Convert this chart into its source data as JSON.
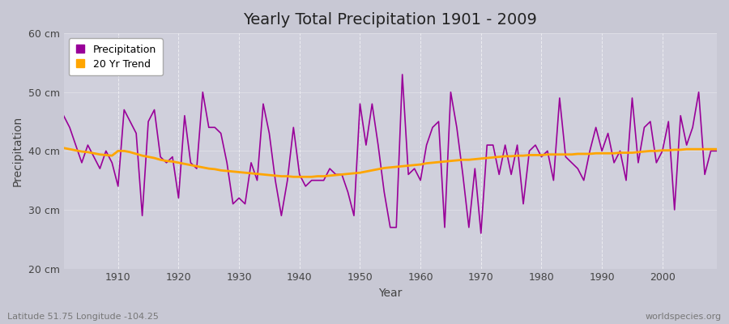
{
  "title": "Yearly Total Precipitation 1901 - 2009",
  "xlabel": "Year",
  "ylabel": "Precipitation",
  "subtitle": "Latitude 51.75 Longitude -104.25",
  "watermark": "worldspecies.org",
  "precip_color": "#990099",
  "trend_color": "#FFA500",
  "fig_bg_color": "#D8D8E0",
  "plot_bg_color": "#D0D0DC",
  "ylim": [
    20,
    60
  ],
  "xlim": [
    1901,
    2009
  ],
  "yticks": [
    20,
    30,
    40,
    50,
    60
  ],
  "ytick_labels": [
    "20 cm",
    "30 cm",
    "40 cm",
    "50 cm",
    "60 cm"
  ],
  "years": [
    1901,
    1902,
    1903,
    1904,
    1905,
    1906,
    1907,
    1908,
    1909,
    1910,
    1911,
    1912,
    1913,
    1914,
    1915,
    1916,
    1917,
    1918,
    1919,
    1920,
    1921,
    1922,
    1923,
    1924,
    1925,
    1926,
    1927,
    1928,
    1929,
    1930,
    1931,
    1932,
    1933,
    1934,
    1935,
    1936,
    1937,
    1938,
    1939,
    1940,
    1941,
    1942,
    1943,
    1944,
    1945,
    1946,
    1947,
    1948,
    1949,
    1950,
    1951,
    1952,
    1953,
    1954,
    1955,
    1956,
    1957,
    1958,
    1959,
    1960,
    1961,
    1962,
    1963,
    1964,
    1965,
    1966,
    1967,
    1968,
    1969,
    1970,
    1971,
    1972,
    1973,
    1974,
    1975,
    1976,
    1977,
    1978,
    1979,
    1980,
    1981,
    1982,
    1983,
    1984,
    1985,
    1986,
    1987,
    1988,
    1989,
    1990,
    1991,
    1992,
    1993,
    1994,
    1995,
    1996,
    1997,
    1998,
    1999,
    2000,
    2001,
    2002,
    2003,
    2004,
    2005,
    2006,
    2007,
    2008,
    2009
  ],
  "precip": [
    46,
    44,
    41,
    38,
    41,
    39,
    37,
    40,
    38,
    34,
    47,
    45,
    43,
    29,
    45,
    47,
    39,
    38,
    39,
    32,
    46,
    38,
    37,
    50,
    44,
    44,
    43,
    38,
    31,
    32,
    31,
    38,
    35,
    48,
    43,
    35,
    29,
    35,
    44,
    36,
    34,
    35,
    35,
    35,
    37,
    36,
    36,
    33,
    29,
    48,
    41,
    48,
    41,
    33,
    27,
    27,
    53,
    36,
    37,
    35,
    41,
    44,
    45,
    27,
    50,
    44,
    36,
    27,
    37,
    26,
    41,
    41,
    36,
    41,
    36,
    41,
    31,
    40,
    41,
    39,
    40,
    35,
    49,
    39,
    38,
    37,
    35,
    40,
    44,
    40,
    43,
    38,
    40,
    35,
    49,
    38,
    44,
    45,
    38,
    40,
    45,
    30,
    46,
    41,
    44,
    50,
    36,
    40,
    40
  ],
  "trend": [
    40.5,
    40.3,
    40.1,
    39.9,
    39.8,
    39.6,
    39.4,
    39.3,
    39.2,
    40.0,
    40.0,
    39.8,
    39.5,
    39.2,
    39.0,
    38.8,
    38.5,
    38.3,
    38.2,
    38.0,
    37.8,
    37.6,
    37.4,
    37.2,
    37.0,
    36.9,
    36.7,
    36.6,
    36.5,
    36.4,
    36.3,
    36.2,
    36.1,
    36.0,
    35.9,
    35.8,
    35.7,
    35.7,
    35.6,
    35.6,
    35.6,
    35.6,
    35.7,
    35.7,
    35.8,
    35.9,
    36.0,
    36.1,
    36.2,
    36.3,
    36.5,
    36.7,
    36.9,
    37.1,
    37.2,
    37.3,
    37.4,
    37.5,
    37.6,
    37.7,
    37.9,
    38.0,
    38.1,
    38.2,
    38.3,
    38.4,
    38.5,
    38.5,
    38.6,
    38.7,
    38.8,
    38.9,
    39.0,
    39.1,
    39.1,
    39.2,
    39.2,
    39.3,
    39.3,
    39.3,
    39.4,
    39.4,
    39.4,
    39.4,
    39.4,
    39.5,
    39.5,
    39.5,
    39.6,
    39.6,
    39.6,
    39.6,
    39.7,
    39.7,
    39.7,
    39.8,
    39.9,
    40.0,
    40.0,
    40.1,
    40.1,
    40.2,
    40.2,
    40.3,
    40.3,
    40.3,
    40.3,
    40.3,
    40.3
  ]
}
